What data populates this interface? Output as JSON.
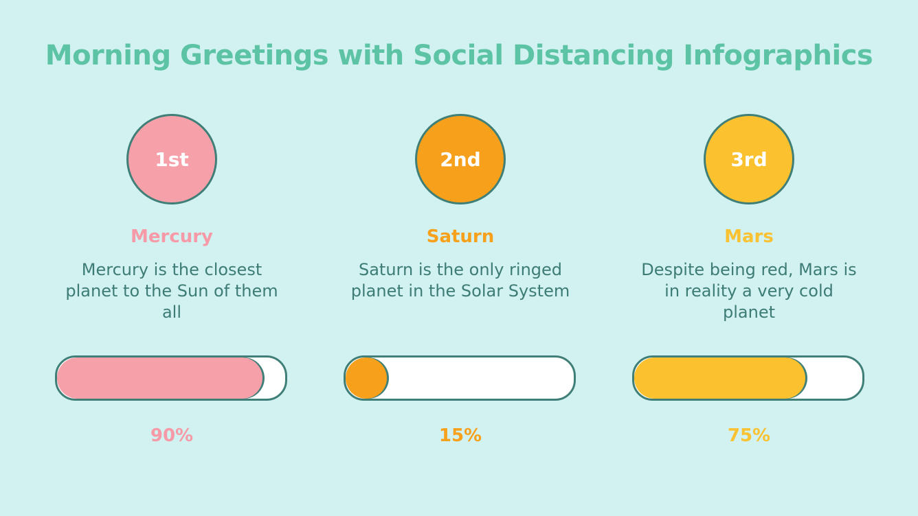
{
  "title": "Morning Greetings with Social Distancing Infographics",
  "colors": {
    "background": "#d2f1f1",
    "title": "#5cc3a4",
    "outline": "#3f7f78",
    "text": "#3d7c75"
  },
  "items": [
    {
      "rank": "1st",
      "name": "Mercury",
      "description": "Mercury is the closest planet to the Sun of them all",
      "percent_label": "90%",
      "percent": 90,
      "color": "#f6a0aa",
      "label_color": "#f59aa6"
    },
    {
      "rank": "2nd",
      "name": "Saturn",
      "description": "Saturn is the only ringed planet in the Solar System",
      "percent_label": "15%",
      "percent": 15,
      "color": "#f7a01c",
      "label_color": "#f7a01c"
    },
    {
      "rank": "3rd",
      "name": "Mars",
      "description": "Despite being red, Mars is in reality a very cold planet",
      "percent_label": "75%",
      "percent": 75,
      "color": "#fbc12e",
      "label_color": "#f9c232"
    }
  ]
}
